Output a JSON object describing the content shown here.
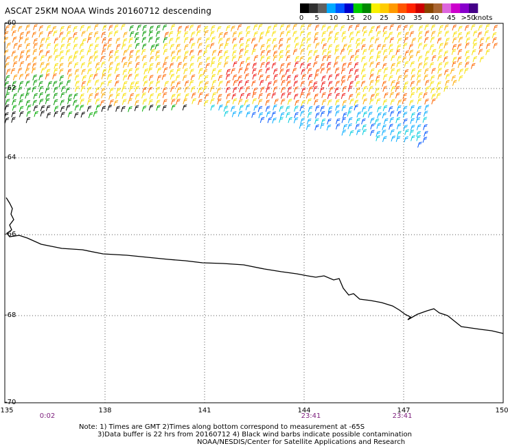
{
  "header": {
    "title": "ASCAT 25KM NOAA Winds 20160712 descending"
  },
  "scale": {
    "labels": [
      "0",
      "5",
      "10",
      "15",
      "20",
      "25",
      "30",
      "35",
      "40",
      "45",
      ">50"
    ],
    "unit": "knots",
    "colors": [
      "#000000",
      "#303030",
      "#606060",
      "#00aaff",
      "#0055ff",
      "#0000cc",
      "#00cc00",
      "#008800",
      "#f8f000",
      "#ffcc00",
      "#ff9900",
      "#ff5500",
      "#ff2200",
      "#cc0000",
      "#884400",
      "#aa6633",
      "#dd66dd",
      "#cc00cc",
      "#8800cc",
      "#440088"
    ]
  },
  "axes": {
    "latitudes": [
      "-60",
      "-62",
      "-64",
      "-66",
      "-68",
      "-70"
    ],
    "longitudes": [
      "135",
      "138",
      "141",
      "144",
      "147",
      "150"
    ],
    "times": [
      "0:02",
      "23:41",
      "23:41"
    ]
  },
  "notes": {
    "line1": "Note: 1) Times are GMT 2)Times along bottom correspond to measurement at -65S",
    "line2": "3)Data buffer is 22 hrs from 20160712 4) Black wind barbs indicate possible contamination",
    "line3": "NOAA/NESDIS/Center for Satellite Applications and Research"
  }
}
